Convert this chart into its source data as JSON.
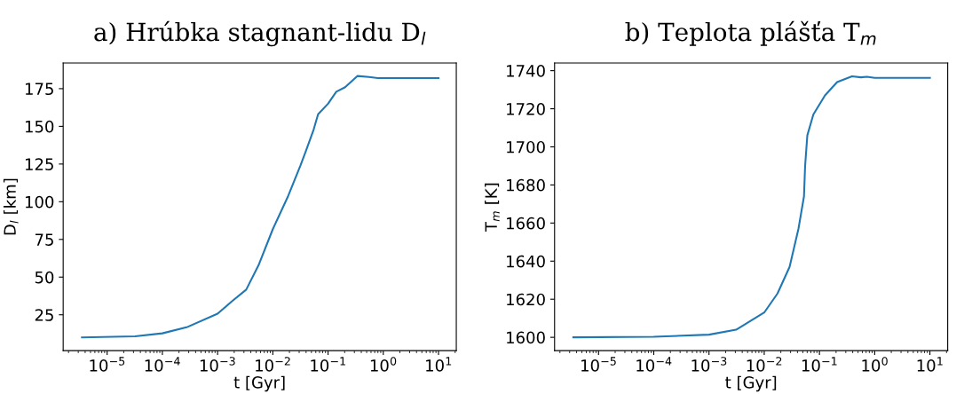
{
  "chart_data": [
    {
      "type": "line",
      "title": "a) Hrúbka stagnant-lidu D$_{l}$",
      "xlabel": "t [Gyr]",
      "ylabel": "D$_{l}$ [km]",
      "log": "x",
      "grid": false,
      "legend": false,
      "series": [
        {
          "color": "#1f77b4",
          "x": [
            3.5e-06,
            3.2e-05,
            0.0001,
            0.000275,
            0.001,
            0.00178,
            0.0033,
            0.0055,
            0.01,
            0.019,
            0.0316,
            0.04,
            0.055,
            0.066,
            0.1,
            0.141,
            0.204,
            0.339,
            0.55,
            0.8,
            10
          ],
          "values": [
            10,
            10.7,
            12.7,
            16.7,
            25.7,
            33.7,
            41.7,
            57.8,
            81.8,
            103.9,
            124,
            134,
            148,
            158,
            165,
            173,
            176,
            183.4,
            182.8,
            182,
            182
          ]
        }
      ],
      "xlim": [
        1.6e-06,
        21
      ],
      "ylim": [
        1.2,
        192
      ],
      "xticks": [
        {
          "value": 1e-05,
          "label": "10$^{−5}$"
        },
        {
          "value": 0.0001,
          "label": "10$^{−4}$"
        },
        {
          "value": 0.001,
          "label": "10$^{−3}$"
        },
        {
          "value": 0.01,
          "label": "10$^{−2}$"
        },
        {
          "value": 0.1,
          "label": "10$^{−1}$"
        },
        {
          "value": 1,
          "label": "10$^{0}$"
        },
        {
          "value": 10,
          "label": "10$^{1}$"
        }
      ],
      "yticks": [
        25,
        50,
        75,
        100,
        125,
        150,
        175
      ]
    },
    {
      "type": "line",
      "title": "b) Teplota plášťa T$_{m}$",
      "xlabel": "t [Gyr]",
      "ylabel": "T$_{m}$ [K]",
      "log": "x",
      "grid": false,
      "legend": false,
      "series": [
        {
          "color": "#1f77b4",
          "x": [
            3.5e-06,
            0.0001,
            0.001,
            0.0031,
            0.01,
            0.0174,
            0.0288,
            0.0417,
            0.0525,
            0.055,
            0.0603,
            0.0776,
            0.126,
            0.209,
            0.389,
            0.562,
            0.724,
            1,
            10
          ],
          "values": [
            1600,
            1600.3,
            1601.4,
            1604,
            1613,
            1623,
            1637,
            1657,
            1674,
            1690,
            1706,
            1717,
            1727,
            1734,
            1737,
            1736.5,
            1736.8,
            1736.2,
            1736.2
          ]
        }
      ],
      "xlim": [
        1.6e-06,
        21
      ],
      "ylim": [
        1593,
        1744
      ],
      "xticks": [
        {
          "value": 1e-05,
          "label": "10$^{−5}$"
        },
        {
          "value": 0.0001,
          "label": "10$^{−4}$"
        },
        {
          "value": 0.001,
          "label": "10$^{−3}$"
        },
        {
          "value": 0.01,
          "label": "10$^{−2}$"
        },
        {
          "value": 0.1,
          "label": "10$^{−1}$"
        },
        {
          "value": 1,
          "label": "10$^{0}$"
        },
        {
          "value": 10,
          "label": "10$^{1}$"
        }
      ],
      "yticks": [
        1600,
        1620,
        1640,
        1660,
        1680,
        1700,
        1720,
        1740
      ]
    }
  ]
}
